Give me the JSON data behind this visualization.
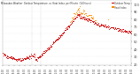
{
  "bg_color": "#ffffff",
  "plot_bg_color": "#ffffff",
  "text_color": "#333333",
  "grid_color": "#aaaaaa",
  "temp_color": "#cc0000",
  "heat_color": "#ff8800",
  "legend_temp": "Outdoor Temp",
  "legend_heat": "Heat Index",
  "ylim": [
    18,
    105
  ],
  "xlim": [
    0,
    1440
  ],
  "yticks": [
    20,
    30,
    40,
    50,
    60,
    70,
    80,
    90,
    100
  ],
  "num_points": 1440,
  "vlines": [
    320,
    420
  ]
}
